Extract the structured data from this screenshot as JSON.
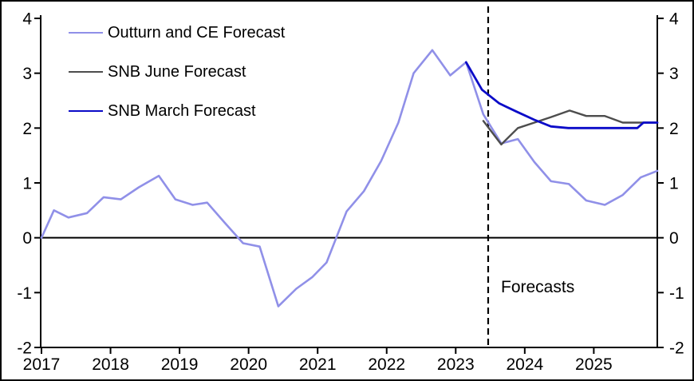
{
  "window": {
    "background": "#ffffff",
    "border_color": "#000000"
  },
  "legend": {
    "position": "top-left",
    "items": [
      {
        "label": "Outturn and CE Forecast",
        "color": "#9090E8"
      },
      {
        "label": "SNB June Forecast",
        "color": "#4D4D4D"
      },
      {
        "label": "SNB March Forecast",
        "color": "#0B0BC8"
      }
    ]
  },
  "annotations": {
    "forecasts_label": "Forecasts",
    "forecast_line_x": 2023.47,
    "forecast_line_style": "dashed",
    "forecast_line_color": "#000000"
  },
  "chart_data": {
    "type": "line",
    "title": "",
    "xlabel": "",
    "ylabel": "",
    "xlim": [
      2017,
      2025.92
    ],
    "ylim": [
      -2,
      4
    ],
    "grid": false,
    "zero_line": true,
    "axis_color": "#000000",
    "x_ticks": {
      "values": [
        2017,
        2018,
        2019,
        2020,
        2021,
        2022,
        2023,
        2024,
        2025
      ],
      "labels": [
        "2017",
        "2018",
        "2019",
        "2020",
        "2021",
        "2022",
        "2023",
        "2024",
        "2025"
      ]
    },
    "y_ticks": {
      "values": [
        -2,
        -1,
        0,
        1,
        2,
        3,
        4
      ],
      "labels": [
        "-2",
        "-1",
        "0",
        "1",
        "2",
        "3",
        "4"
      ],
      "sides": [
        "left",
        "right"
      ]
    },
    "series": [
      {
        "name": "Outturn and CE Forecast",
        "color": "#9090E8",
        "width": 2.6,
        "points": [
          [
            2017.0,
            0.0
          ],
          [
            2017.18,
            0.5
          ],
          [
            2017.39,
            0.37
          ],
          [
            2017.66,
            0.45
          ],
          [
            2017.9,
            0.74
          ],
          [
            2018.15,
            0.7
          ],
          [
            2018.41,
            0.92
          ],
          [
            2018.7,
            1.13
          ],
          [
            2018.94,
            0.7
          ],
          [
            2019.19,
            0.6
          ],
          [
            2019.4,
            0.64
          ],
          [
            2019.65,
            0.28
          ],
          [
            2019.92,
            -0.1
          ],
          [
            2020.16,
            -0.16
          ],
          [
            2020.43,
            -1.25
          ],
          [
            2020.69,
            -0.93
          ],
          [
            2020.92,
            -0.72
          ],
          [
            2021.13,
            -0.45
          ],
          [
            2021.42,
            0.48
          ],
          [
            2021.67,
            0.85
          ],
          [
            2021.92,
            1.4
          ],
          [
            2022.17,
            2.1
          ],
          [
            2022.39,
            3.0
          ],
          [
            2022.66,
            3.42
          ],
          [
            2022.92,
            2.96
          ],
          [
            2023.15,
            3.2
          ],
          [
            2023.4,
            2.25
          ],
          [
            2023.66,
            1.72
          ],
          [
            2023.9,
            1.8
          ],
          [
            2024.14,
            1.38
          ],
          [
            2024.38,
            1.03
          ],
          [
            2024.64,
            0.98
          ],
          [
            2024.89,
            0.68
          ],
          [
            2025.16,
            0.6
          ],
          [
            2025.42,
            0.78
          ],
          [
            2025.68,
            1.1
          ],
          [
            2025.92,
            1.22
          ]
        ]
      },
      {
        "name": "SNB June Forecast",
        "color": "#4D4D4D",
        "width": 2.4,
        "points": [
          [
            2023.4,
            2.13
          ],
          [
            2023.66,
            1.7
          ],
          [
            2023.9,
            2.0
          ],
          [
            2024.14,
            2.1
          ],
          [
            2024.38,
            2.2
          ],
          [
            2024.65,
            2.32
          ],
          [
            2024.89,
            2.22
          ],
          [
            2025.16,
            2.22
          ],
          [
            2025.42,
            2.1
          ],
          [
            2025.68,
            2.1
          ],
          [
            2025.92,
            2.1
          ]
        ]
      },
      {
        "name": "SNB March Forecast",
        "color": "#0B0BC8",
        "width": 2.8,
        "points": [
          [
            2023.15,
            3.2
          ],
          [
            2023.38,
            2.7
          ],
          [
            2023.63,
            2.45
          ],
          [
            2023.88,
            2.3
          ],
          [
            2024.14,
            2.15
          ],
          [
            2024.38,
            2.03
          ],
          [
            2024.63,
            2.0
          ],
          [
            2024.89,
            2.0
          ],
          [
            2025.15,
            2.0
          ],
          [
            2025.42,
            2.0
          ],
          [
            2025.63,
            2.0
          ],
          [
            2025.72,
            2.1
          ],
          [
            2025.92,
            2.1
          ]
        ]
      }
    ]
  }
}
